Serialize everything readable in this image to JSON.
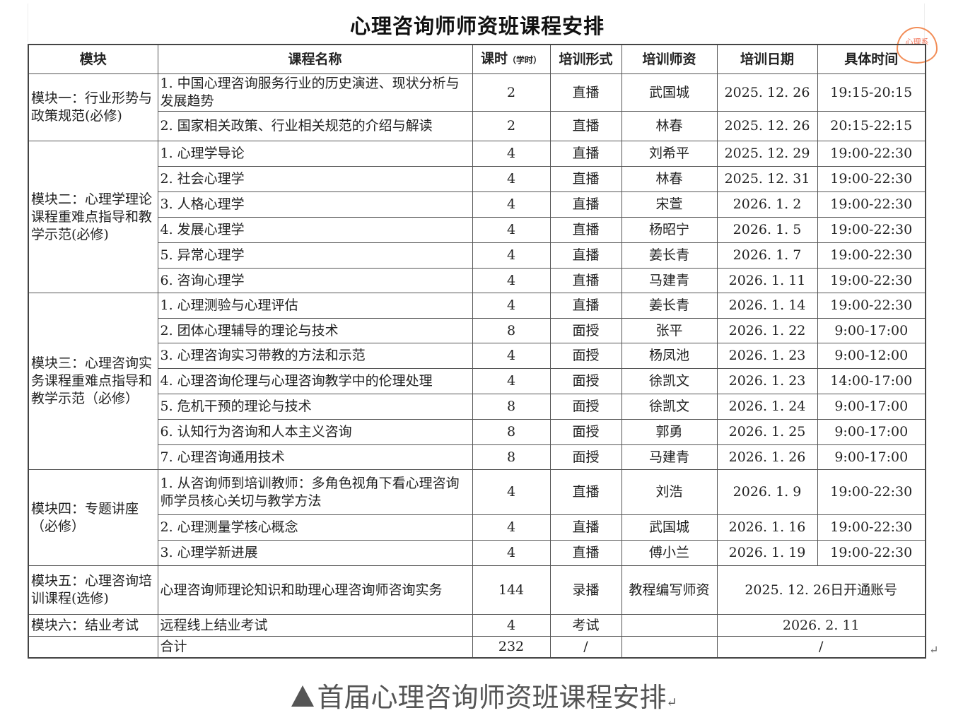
{
  "document": {
    "title": "心理咨询师师资班课程安排",
    "caption": "首届心理咨询师资班课程安排",
    "stamp_text": "心理系",
    "return_mark": "↵",
    "caption_marker_icon": "triangle-up-icon"
  },
  "headers": {
    "module": "模块",
    "course": "课程名称",
    "hours": "课时",
    "hours_unit": "（学时）",
    "format": "培训形式",
    "teacher": "培训师资",
    "date": "培训日期",
    "time": "具体时间"
  },
  "modules": [
    {
      "name": "模块一：行业形势与政策规范(必修)",
      "courses": [
        {
          "title": "1. 中国心理咨询服务行业的历史演进、现状分析与发展趋势",
          "hours": "2",
          "format": "直播",
          "teacher": "武国城",
          "date": "2025. 12. 26",
          "time": "19:15-20:15"
        },
        {
          "title": "2. 国家相关政策、行业相关规范的介绍与解读",
          "hours": "2",
          "format": "直播",
          "teacher": "林春",
          "date": "2025. 12. 26",
          "time": "20:15-22:15"
        }
      ]
    },
    {
      "name": "模块二：心理学理论课程重难点指导和教学示范(必修)",
      "courses": [
        {
          "title": "1. 心理学导论",
          "hours": "4",
          "format": "直播",
          "teacher": "刘希平",
          "date": "2025. 12. 29",
          "time": "19:00-22:30"
        },
        {
          "title": "2. 社会心理学",
          "hours": "4",
          "format": "直播",
          "teacher": "林春",
          "date": "2025. 12. 31",
          "time": "19:00-22:30"
        },
        {
          "title": "3. 人格心理学",
          "hours": "4",
          "format": "直播",
          "teacher": "宋萱",
          "date": "2026. 1. 2",
          "time": "19:00-22:30"
        },
        {
          "title": "4. 发展心理学",
          "hours": "4",
          "format": "直播",
          "teacher": "杨昭宁",
          "date": "2026. 1. 5",
          "time": "19:00-22:30"
        },
        {
          "title": "5. 异常心理学",
          "hours": "4",
          "format": "直播",
          "teacher": "姜长青",
          "date": "2026. 1. 7",
          "time": "19:00-22:30"
        },
        {
          "title": "6. 咨询心理学",
          "hours": "4",
          "format": "直播",
          "teacher": "马建青",
          "date": "2026. 1. 11",
          "time": "19:00-22:30"
        }
      ]
    },
    {
      "name": "模块三：心理咨询实务课程重难点指导和教学示范（必修）",
      "courses": [
        {
          "title": "1. 心理测验与心理评估",
          "hours": "4",
          "format": "直播",
          "teacher": "姜长青",
          "date": "2026. 1. 14",
          "time": "19:00-22:30"
        },
        {
          "title": "2. 团体心理辅导的理论与技术",
          "hours": "8",
          "format": "面授",
          "teacher": "张平",
          "date": "2026. 1. 22",
          "time": "9:00-17:00"
        },
        {
          "title": "3. 心理咨询实习带教的方法和示范",
          "hours": "4",
          "format": "面授",
          "teacher": "杨凤池",
          "date": "2026. 1. 23",
          "time": "9:00-12:00"
        },
        {
          "title": "4. 心理咨询伦理与心理咨询教学中的伦理处理",
          "hours": "4",
          "format": "面授",
          "teacher": "徐凯文",
          "date": "2026. 1. 23",
          "time": "14:00-17:00"
        },
        {
          "title": "5. 危机干预的理论与技术",
          "hours": "8",
          "format": "面授",
          "teacher": "徐凯文",
          "date": "2026. 1. 24",
          "time": "9:00-17:00"
        },
        {
          "title": "6. 认知行为咨询和人本主义咨询",
          "hours": "8",
          "format": "面授",
          "teacher": "郭勇",
          "date": "2026. 1. 25",
          "time": "9:00-17:00"
        },
        {
          "title": "7. 心理咨询通用技术",
          "hours": "8",
          "format": "面授",
          "teacher": "马建青",
          "date": "2026. 1. 26",
          "time": "9:00-17:00"
        }
      ]
    },
    {
      "name": "模块四：专题讲座（必修）",
      "courses": [
        {
          "title": "1. 从咨询师到培训教师：多角色视角下看心理咨询师学员核心关切与教学方法",
          "hours": "4",
          "format": "直播",
          "teacher": "刘浩",
          "date": "2026. 1. 9",
          "time": "19:00-22:30"
        },
        {
          "title": "2. 心理测量学核心概念",
          "hours": "4",
          "format": "直播",
          "teacher": "武国城",
          "date": "2026. 1. 16",
          "time": "19:00-22:30"
        },
        {
          "title": "3. 心理学新进展",
          "hours": "4",
          "format": "直播",
          "teacher": "傅小兰",
          "date": "2026. 1. 19",
          "time": "19:00-22:30"
        }
      ]
    },
    {
      "name": "模块五：心理咨询培训课程(选修)",
      "courses": [
        {
          "title": "心理咨询师理论知识和助理心理咨询师咨询实务",
          "hours": "144",
          "format": "录播",
          "teacher": "教程编写师资",
          "date_time": "2025. 12. 26日开通账号"
        }
      ]
    },
    {
      "name": "模块六：结业考试",
      "courses": [
        {
          "title": "远程线上结业考试",
          "hours": "4",
          "format": "考试",
          "teacher": "",
          "date_time": "2026. 2. 11"
        }
      ]
    }
  ],
  "total": {
    "module": "",
    "label": "合计",
    "hours": "232",
    "format": "/",
    "teacher": "",
    "date_time": "/"
  }
}
